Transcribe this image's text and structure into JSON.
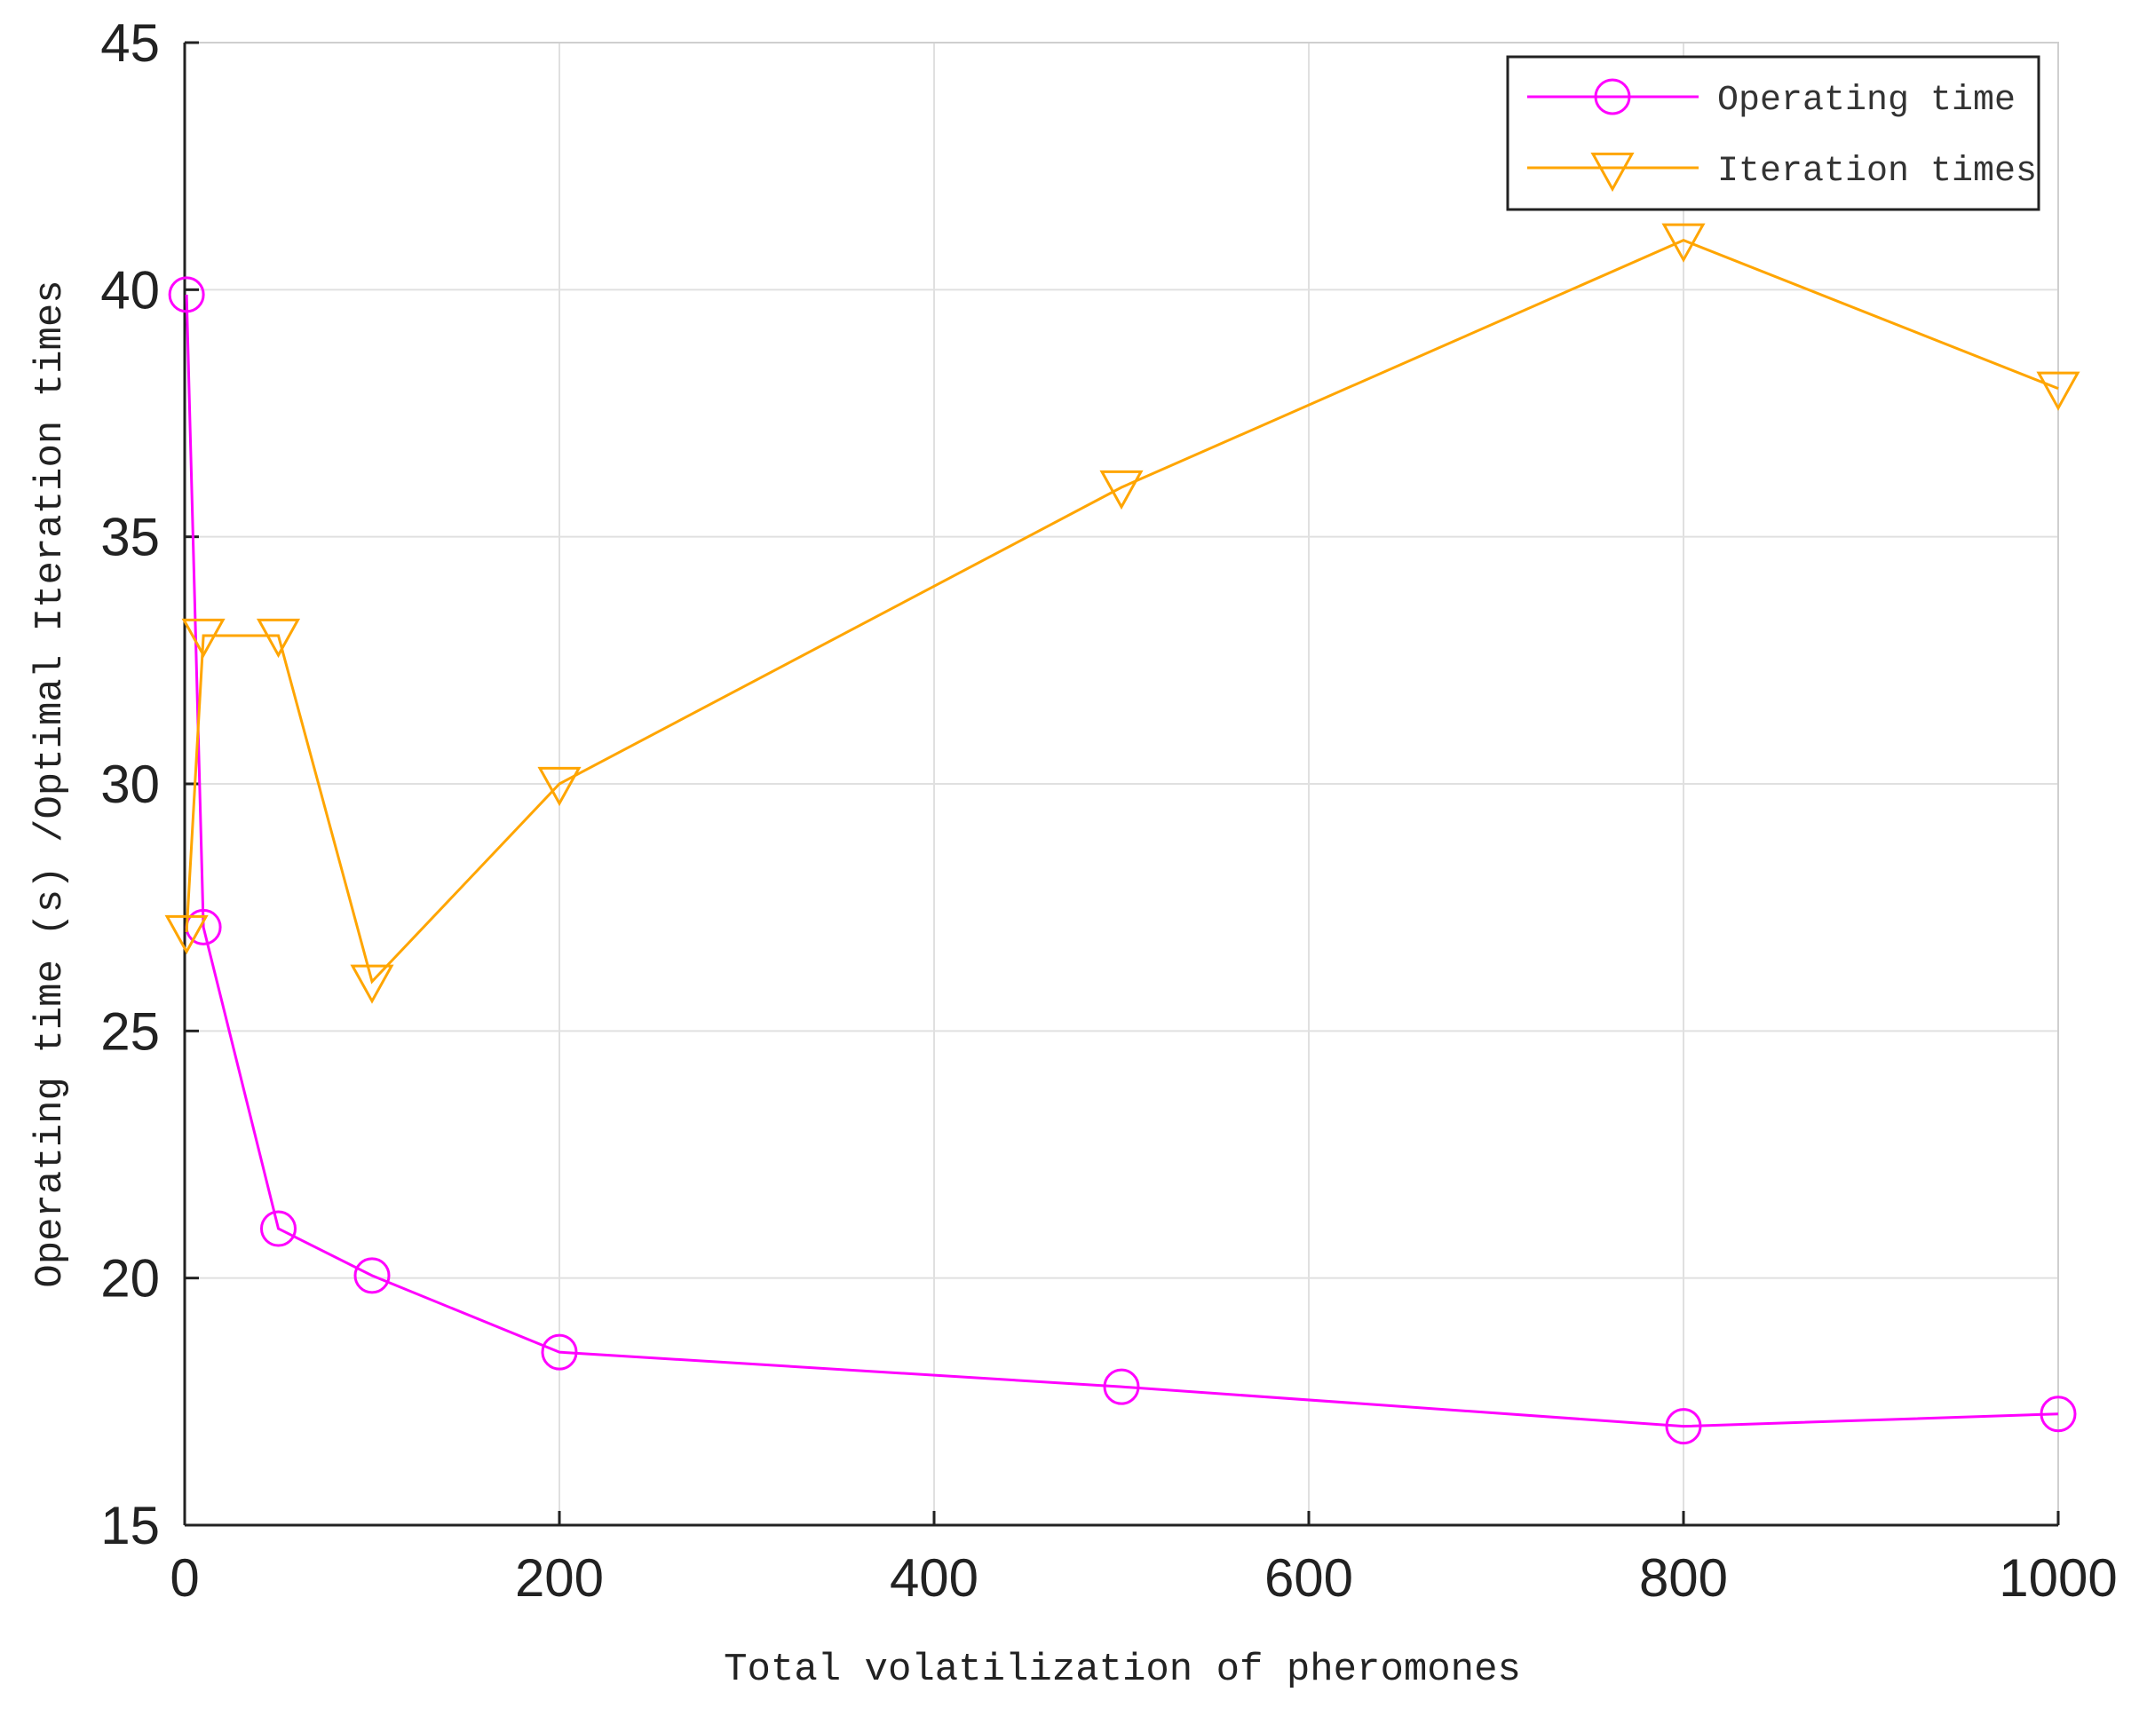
{
  "chart_data": {
    "type": "line",
    "title": "",
    "xlabel": "Total volatilization of pheromones",
    "ylabel": "Operating time (s) /Optimal Iteration times",
    "xlim": [
      0,
      1000
    ],
    "ylim": [
      15,
      45
    ],
    "xticks": [
      0,
      200,
      400,
      600,
      800,
      1000
    ],
    "yticks": [
      15,
      20,
      25,
      30,
      35,
      40,
      45
    ],
    "grid": true,
    "legend_position": "top-right",
    "series": [
      {
        "name": "Operating time",
        "color": "#ff00ff",
        "marker": "circle",
        "points": [
          {
            "x": 1,
            "y": 39.9
          },
          {
            "x": 10,
            "y": 27.1
          },
          {
            "x": 50,
            "y": 21.0
          },
          {
            "x": 100,
            "y": 20.05
          },
          {
            "x": 200,
            "y": 18.5
          },
          {
            "x": 500,
            "y": 17.8
          },
          {
            "x": 800,
            "y": 17.0
          },
          {
            "x": 1000,
            "y": 17.25
          }
        ]
      },
      {
        "name": "Iteration times",
        "color": "#ffa500",
        "marker": "triangle-down",
        "points": [
          {
            "x": 1,
            "y": 27
          },
          {
            "x": 10,
            "y": 33
          },
          {
            "x": 50,
            "y": 33
          },
          {
            "x": 100,
            "y": 26
          },
          {
            "x": 200,
            "y": 30
          },
          {
            "x": 500,
            "y": 36
          },
          {
            "x": 800,
            "y": 41
          },
          {
            "x": 1000,
            "y": 38
          }
        ]
      }
    ]
  }
}
